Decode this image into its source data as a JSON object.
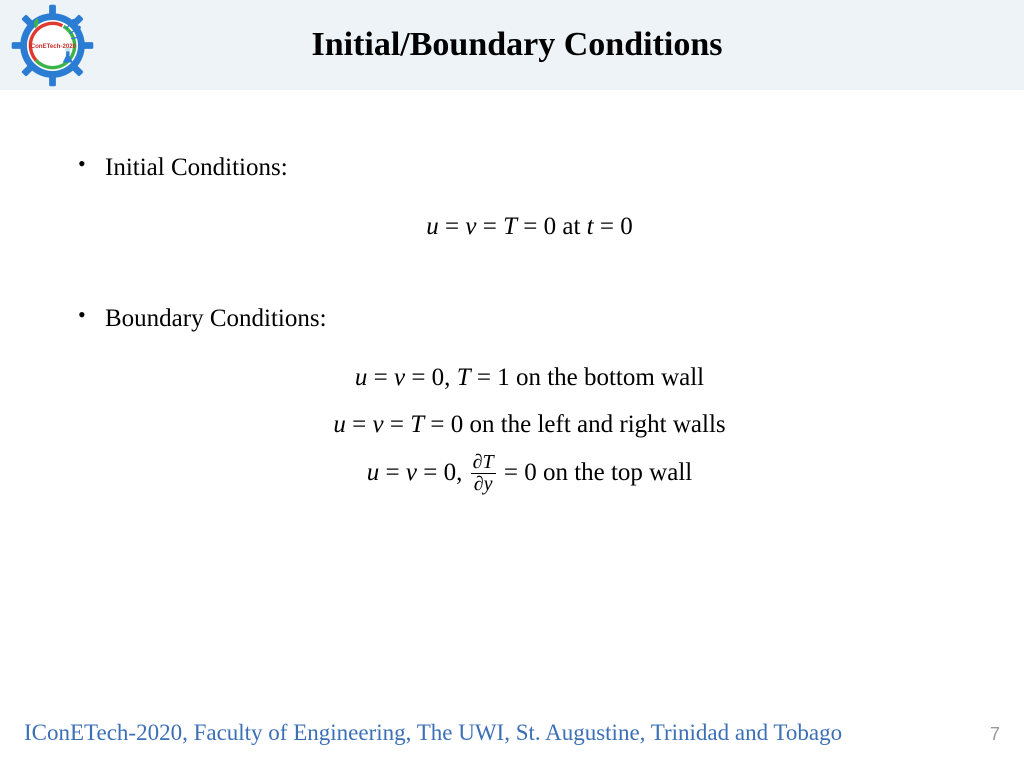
{
  "header": {
    "title": "Initial/Boundary Conditions",
    "background_color": "#edf3f6",
    "logo": {
      "name": "IConETech-2020",
      "gear_color": "#2b7cd3",
      "ring_outer": "#e03a2f",
      "ring_inner": "#3bb54a",
      "flask_color": "#2b7cd3",
      "circuit_color": "#2b7cd3",
      "label_text": "IConETech-2020",
      "label_color": "#c62f2a"
    }
  },
  "content": {
    "bullets": [
      {
        "label": "Initial Conditions:",
        "equations": [
          {
            "html": "<span class='mi'>u</span> = <span class='mi'>v</span> = <span class='mi'>T</span> = 0 at <span class='mi'>t</span> = 0"
          }
        ]
      },
      {
        "label": "Boundary Conditions:",
        "equations": [
          {
            "html": "<span class='mi'>u</span> = <span class='mi'>v</span> = 0, <span class='mi'>T</span> = 1 on the bottom wall"
          },
          {
            "html": "<span class='mi'>u</span> = <span class='mi'>v</span> = <span class='mi'>T</span> = 0 on the left and right walls"
          },
          {
            "html": "<span class='mi'>u</span> = <span class='mi'>v</span> = 0, <span class='frac'><span class='num'><span class='mi'>∂T</span></span><span class='den'><span class='mi'>∂y</span></span></span> = 0 on the top wall"
          }
        ]
      }
    ],
    "body_fontsize": 25,
    "text_color": "#000000"
  },
  "footer": {
    "text": "IConETech-2020, Faculty of Engineering, The UWI, St. Augustine, Trinidad and Tobago",
    "text_color": "#3b6fb6",
    "page_number": "7",
    "page_number_color": "#9a9a9a"
  }
}
